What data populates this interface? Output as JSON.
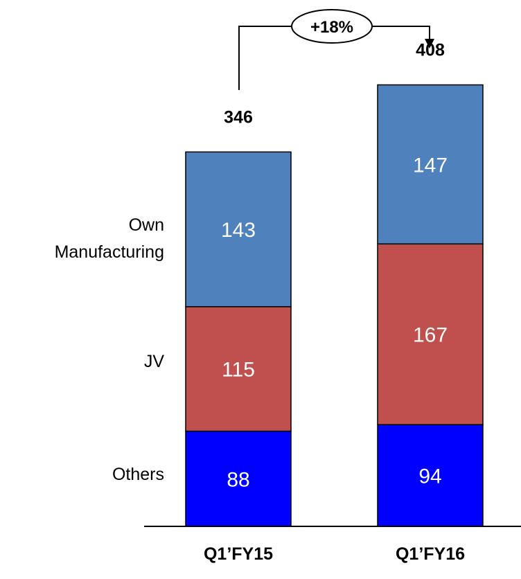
{
  "chart_data": {
    "type": "bar",
    "stacked": true,
    "categories": [
      "Q1’FY15",
      "Q1’FY16"
    ],
    "series": [
      {
        "name": "Others",
        "values": [
          88,
          94
        ],
        "color": "#0000ff"
      },
      {
        "name": "JV",
        "values": [
          115,
          167
        ],
        "color": "#c0504d"
      },
      {
        "name": "Own Manufacturing",
        "values": [
          143,
          147
        ],
        "color": "#4f81bd"
      }
    ],
    "totals": [
      "346",
      "408"
    ],
    "growth_label": "+18%",
    "legend_lines": {
      "own": [
        "Own",
        "Manufacturing"
      ],
      "jv": [
        "JV"
      ],
      "others": [
        "Others"
      ]
    },
    "legend_placement": "left",
    "grid": false
  }
}
